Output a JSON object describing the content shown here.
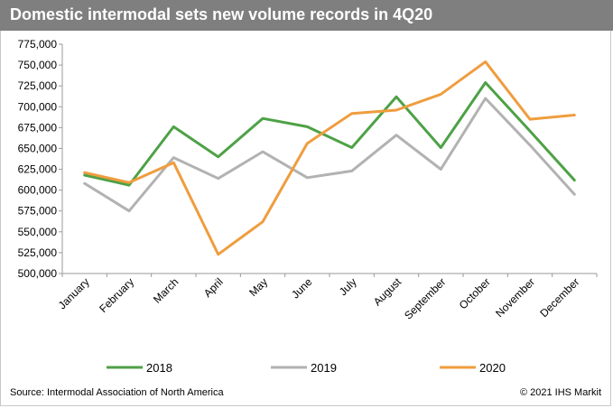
{
  "header": {
    "title": "Domestic intermodal sets new volume records in 4Q20"
  },
  "footer": {
    "source": "Source: Intermodal Association of North America",
    "copyright": "© 2021 IHS Markit"
  },
  "chart_data": {
    "type": "line",
    "title": "Domestic intermodal sets new volume records in 4Q20",
    "categories": [
      "January",
      "February",
      "March",
      "April",
      "May",
      "June",
      "July",
      "August",
      "September",
      "October",
      "November",
      "December"
    ],
    "ylim": [
      500000,
      775000
    ],
    "yticks": [
      500000,
      525000,
      550000,
      575000,
      600000,
      625000,
      650000,
      675000,
      700000,
      725000,
      750000,
      775000
    ],
    "ytick_labels": [
      "500,000",
      "525,000",
      "550,000",
      "575,000",
      "600,000",
      "625,000",
      "650,000",
      "675,000",
      "700,000",
      "725,000",
      "750,000",
      "775,000"
    ],
    "legend_position": "bottom",
    "grid": false,
    "series": [
      {
        "name": "2018",
        "color": "#4ea146",
        "values": [
          618000,
          606000,
          676000,
          640000,
          686000,
          676000,
          651000,
          712000,
          651000,
          729000,
          671000,
          612000
        ]
      },
      {
        "name": "2019",
        "color": "#b2b2b2",
        "values": [
          608000,
          575000,
          639000,
          614000,
          646000,
          615000,
          623000,
          666000,
          625000,
          710000,
          654000,
          595000
        ]
      },
      {
        "name": "2020",
        "color": "#ef9d3e",
        "values": [
          621000,
          609000,
          633000,
          523000,
          562000,
          656000,
          692000,
          696000,
          715000,
          754000,
          685000,
          690000
        ]
      }
    ]
  }
}
